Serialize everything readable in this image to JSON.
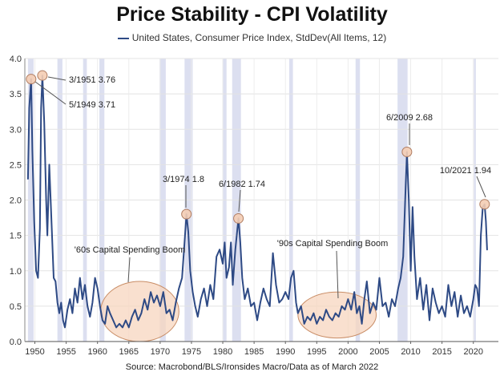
{
  "chart_data": {
    "type": "line",
    "title": "Price Stability - CPI Volatility",
    "legend": "United States, Consumer Price Index, StdDev(All Items, 12)",
    "legend_position": "top-center",
    "source": "Source: Macrobond/BLS/Ironsides Macro/Data as of March 2022",
    "grid": true,
    "xlim": [
      1948.4,
      2024.0
    ],
    "ylim": [
      0.0,
      4.0
    ],
    "x_ticks": [
      1950,
      1955,
      1960,
      1965,
      1970,
      1975,
      1980,
      1985,
      1990,
      1995,
      2000,
      2005,
      2010,
      2015,
      2020
    ],
    "y_ticks": [
      "0.0",
      "0.5",
      "1.0",
      "1.5",
      "2.0",
      "2.5",
      "3.0",
      "3.5",
      "4.0"
    ],
    "recession_bands": [
      [
        1948.9,
        1949.8
      ],
      [
        1953.6,
        1954.4
      ],
      [
        1957.7,
        1958.3
      ],
      [
        1960.3,
        1961.1
      ],
      [
        1969.9,
        1970.9
      ],
      [
        1973.9,
        1975.2
      ],
      [
        1980.0,
        1980.6
      ],
      [
        1981.5,
        1982.9
      ],
      [
        1990.6,
        1991.2
      ],
      [
        2001.2,
        2001.9
      ],
      [
        2007.9,
        2009.5
      ],
      [
        2020.1,
        2020.4
      ]
    ],
    "series": [
      {
        "name": "United States, Consumer Price Index, StdDev(All Items, 12)",
        "color": "#2e4a85",
        "x": [
          1948.9,
          1949.1,
          1949.4,
          1949.6,
          1949.9,
          1950.2,
          1950.5,
          1950.8,
          1951.0,
          1951.2,
          1951.5,
          1951.8,
          1952.0,
          1952.3,
          1952.7,
          1953.0,
          1953.3,
          1953.6,
          1953.9,
          1954.2,
          1954.5,
          1954.8,
          1955.2,
          1955.6,
          1956.0,
          1956.4,
          1956.8,
          1957.2,
          1957.6,
          1958.0,
          1958.4,
          1958.8,
          1959.2,
          1959.6,
          1960.0,
          1960.4,
          1960.8,
          1961.2,
          1961.6,
          1962.0,
          1962.5,
          1963.0,
          1963.5,
          1964.0,
          1964.5,
          1965.0,
          1965.5,
          1966.0,
          1966.5,
          1967.0,
          1967.5,
          1968.0,
          1968.5,
          1969.0,
          1969.5,
          1970.0,
          1970.5,
          1971.0,
          1971.5,
          1972.0,
          1972.5,
          1973.0,
          1973.5,
          1973.9,
          1974.2,
          1974.5,
          1974.8,
          1975.2,
          1975.6,
          1976.0,
          1976.5,
          1977.0,
          1977.5,
          1978.0,
          1978.5,
          1979.0,
          1979.5,
          1980.0,
          1980.3,
          1980.6,
          1981.0,
          1981.3,
          1981.6,
          1982.0,
          1982.5,
          1982.8,
          1983.1,
          1983.5,
          1984.0,
          1984.5,
          1985.0,
          1985.5,
          1986.0,
          1986.5,
          1987.0,
          1987.5,
          1988.0,
          1988.5,
          1989.0,
          1989.5,
          1990.0,
          1990.5,
          1990.9,
          1991.3,
          1991.7,
          1992.0,
          1992.5,
          1993.0,
          1993.5,
          1994.0,
          1994.5,
          1995.0,
          1995.5,
          1996.0,
          1996.5,
          1997.0,
          1997.5,
          1998.0,
          1998.5,
          1999.0,
          1999.5,
          2000.0,
          2000.5,
          2001.0,
          2001.4,
          2001.8,
          2002.2,
          2002.6,
          2003.0,
          2003.5,
          2004.0,
          2004.5,
          2005.0,
          2005.5,
          2006.0,
          2006.5,
          2007.0,
          2007.5,
          2008.0,
          2008.4,
          2008.8,
          2009.2,
          2009.4,
          2009.7,
          2010.0,
          2010.3,
          2010.6,
          2011.0,
          2011.5,
          2012.0,
          2012.5,
          2013.0,
          2013.5,
          2014.0,
          2014.5,
          2015.0,
          2015.5,
          2016.0,
          2016.5,
          2017.0,
          2017.5,
          2018.0,
          2018.5,
          2019.0,
          2019.5,
          2020.0,
          2020.3,
          2020.6,
          2020.9,
          2021.2,
          2021.5,
          2021.8,
          2022.0,
          2022.2
        ],
        "values": [
          2.3,
          3.3,
          3.71,
          2.7,
          1.7,
          1.0,
          0.9,
          1.6,
          3.3,
          3.76,
          3.1,
          2.0,
          1.5,
          2.5,
          1.6,
          0.9,
          0.85,
          0.55,
          0.4,
          0.55,
          0.3,
          0.2,
          0.45,
          0.6,
          0.4,
          0.75,
          0.55,
          0.9,
          0.6,
          0.8,
          0.5,
          0.35,
          0.55,
          0.9,
          0.75,
          0.5,
          0.3,
          0.25,
          0.5,
          0.4,
          0.3,
          0.2,
          0.25,
          0.2,
          0.3,
          0.2,
          0.35,
          0.45,
          0.3,
          0.4,
          0.6,
          0.45,
          0.7,
          0.55,
          0.65,
          0.5,
          0.7,
          0.4,
          0.45,
          0.3,
          0.55,
          0.75,
          0.9,
          1.4,
          1.8,
          1.55,
          1.0,
          0.7,
          0.5,
          0.35,
          0.6,
          0.75,
          0.5,
          0.8,
          0.6,
          1.2,
          1.3,
          1.1,
          1.4,
          0.9,
          1.05,
          1.4,
          0.8,
          1.3,
          1.74,
          1.4,
          0.9,
          0.6,
          0.75,
          0.5,
          0.55,
          0.3,
          0.55,
          0.75,
          0.6,
          0.5,
          1.25,
          0.8,
          0.55,
          0.6,
          0.7,
          0.6,
          0.9,
          1.0,
          0.55,
          0.4,
          0.5,
          0.25,
          0.35,
          0.3,
          0.4,
          0.25,
          0.35,
          0.3,
          0.45,
          0.35,
          0.3,
          0.4,
          0.35,
          0.5,
          0.45,
          0.6,
          0.45,
          0.7,
          0.4,
          0.5,
          0.25,
          0.6,
          0.85,
          0.4,
          0.55,
          0.45,
          0.9,
          0.5,
          0.55,
          0.35,
          0.6,
          0.5,
          0.75,
          0.9,
          1.2,
          2.2,
          2.68,
          2.0,
          1.0,
          1.9,
          1.2,
          0.6,
          0.9,
          0.45,
          0.8,
          0.3,
          0.75,
          0.55,
          0.4,
          0.5,
          0.35,
          0.8,
          0.5,
          0.7,
          0.35,
          0.65,
          0.4,
          0.5,
          0.35,
          0.6,
          0.8,
          0.75,
          0.5,
          1.5,
          1.9,
          1.94,
          1.7,
          1.3
        ]
      }
    ],
    "annotations": [
      {
        "label": "3/1951 3.76",
        "x": 1951.2,
        "y": 3.76
      },
      {
        "label": "5/1949 3.71",
        "x": 1949.4,
        "y": 3.71
      },
      {
        "label": "3/1974 1.8",
        "x": 1974.2,
        "y": 1.8
      },
      {
        "label": "6/1982 1.74",
        "x": 1982.5,
        "y": 1.74
      },
      {
        "label": "6/2009 2.68",
        "x": 2009.4,
        "y": 2.68
      },
      {
        "label": "10/2021 1.94",
        "x": 2021.8,
        "y": 1.94
      }
    ],
    "regions": [
      {
        "label": "'60s Capital Spending Boom",
        "x_range": [
          1960.5,
          1973.0
        ],
        "y_range": [
          0.0,
          0.85
        ]
      },
      {
        "label": "'90s Capital Spending Boom",
        "x_range": [
          1992.0,
          2004.5
        ],
        "y_range": [
          0.05,
          0.7
        ]
      }
    ]
  }
}
